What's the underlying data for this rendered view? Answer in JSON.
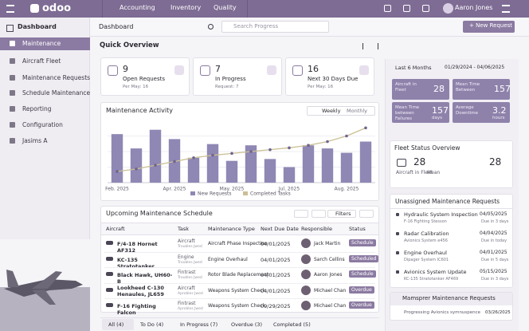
{
  "topbar": {
    "brand": "odoo",
    "menu": [
      "Accounting",
      "Inventory",
      "Quality"
    ],
    "user": "Aaron Jones"
  },
  "sidebar": {
    "title": "Dashboard",
    "items": [
      "Maintenance",
      "Aircraft Fleet",
      "Maintenance Requests",
      "Schedule Maintenance",
      "Reporting",
      "Configuration",
      "Jasims A"
    ]
  },
  "header": {
    "title": "Dashboard",
    "search": "Search Progress",
    "new_button": "+ New Request"
  },
  "overview": {
    "title": "Quick Overview",
    "kpis": [
      {
        "value": "9",
        "label": "Open Requests",
        "sub": "Per May: 16"
      },
      {
        "value": "7",
        "label": "In Progress",
        "sub": "Request: 7"
      },
      {
        "value": "16",
        "label": "Next 30 Days Due",
        "sub": "Per May: 16"
      }
    ]
  },
  "activity": {
    "title": "Maintenance Activity",
    "toggles": [
      "Weekly",
      "Monthly"
    ],
    "chart_data": {
      "type": "bar",
      "ylim": [
        0,
        100
      ],
      "categories": [
        "Feb. 2025",
        null,
        null,
        "Apr. 2025",
        null,
        null,
        "May. 2025",
        null,
        null,
        "Jul. 2025",
        null,
        null,
        "Aug. 2025",
        null
      ],
      "series": [
        {
          "name": "New Requests",
          "color": "#8f87b4",
          "values": [
            78,
            55,
            85,
            70,
            40,
            62,
            35,
            60,
            38,
            25,
            60,
            55,
            48,
            66
          ]
        },
        {
          "name": "Completed Tasks",
          "color": "#cbbf94",
          "values": [
            18,
            22,
            28,
            34,
            40,
            44,
            47,
            50,
            53,
            56,
            60,
            66,
            75,
            88
          ]
        }
      ]
    }
  },
  "schedule": {
    "title": "Upcoming Maintenance Schedule",
    "filters": "Filters",
    "columns": [
      "Aircraft",
      "Task",
      "Maintenance Type",
      "Next Due Date",
      "Responsible",
      "Status"
    ],
    "rows": [
      {
        "aircraft": "F/4-18 Hornet AF312",
        "task": "Aircraft",
        "task_sub": "Troubles Jwed",
        "type": "Aircraft Phase Inspection",
        "due": "04/01/2025",
        "responsible": "Jack Martin",
        "status": "Schedule"
      },
      {
        "aircraft": "KC-135 Stratotanker",
        "task": "Engine",
        "task_sub": "Troubles Jwed",
        "type": "Engine Overhaul",
        "due": "04/01/2025",
        "responsible": "Sarch Cellins",
        "status": "Scheduled"
      },
      {
        "aircraft": "Black Hawk, UH60-B",
        "task": "Fintrast",
        "task_sub": "Troubles Jwed",
        "type": "Rotor Blade Replacement",
        "due": "04/01/2025",
        "responsible": "Aaron Jones",
        "status": "Schedule"
      },
      {
        "aircraft": "Lookheed C-130 Henaules, JL659",
        "task": "Aircraft",
        "task_sub": "Aprobles Jwed",
        "type": "Weapons System Check",
        "due": "04/01/2025",
        "responsible": "Michael Chan",
        "status": "Overdue"
      },
      {
        "aircraft": "F-16 Fighting Falcon",
        "task": "Fintrast",
        "task_sub": "Aprobles Jwed",
        "type": "Weapons System Check",
        "due": "09/29/2025",
        "responsible": "Michael Chan",
        "status": "Overdue"
      }
    ],
    "tabs": [
      "All (4)",
      "To Do (4)",
      "In Progress (7)",
      "Overdue (3)",
      "Completed (5)"
    ]
  },
  "filters": {
    "period": "Last 6 Months",
    "range": "01/29/2024 - 04/06/2025"
  },
  "stats": [
    {
      "label": "Aircraft in Fleet",
      "value": "28",
      "unit": null
    },
    {
      "label": "Mean Time Between",
      "value": "157",
      "unit": null
    },
    {
      "label": "Mean Time between Failures",
      "value": "157",
      "unit": "days"
    },
    {
      "label": "Average Downtime",
      "value": "3.2",
      "unit": "hours"
    }
  ],
  "fleet": {
    "title": "Fleet Status Overview",
    "value": "28",
    "label": "Aircraft in Fleet",
    "mean_label": "Mean",
    "mean_value": "28"
  },
  "unassigned": {
    "title": "Unassigned Maintenance Requests",
    "items": [
      {
        "title": "Hydraulic System Inspection",
        "sub": "F-16 Fighting Stesson",
        "date": "04/05/2025",
        "due": "Due in 3 days"
      },
      {
        "title": "Radar Calibration",
        "sub": "Avionics System e456",
        "date": "04/04/2025",
        "due": "Due in today"
      },
      {
        "title": "Engine Overhaul",
        "sub": "Dipager System IC601",
        "date": "04/01/2025",
        "due": "Due in 5 days"
      },
      {
        "title": "Avionics System Update",
        "sub": "KC-135 Stratotanker AF469",
        "date": "05/15/2025",
        "due": "Due in 3 days"
      }
    ]
  },
  "mamsprer": {
    "title": "Mamsprer Maintenance Requests",
    "item": "Progressing Avionics symnuspence",
    "date": "03/26/2025"
  }
}
